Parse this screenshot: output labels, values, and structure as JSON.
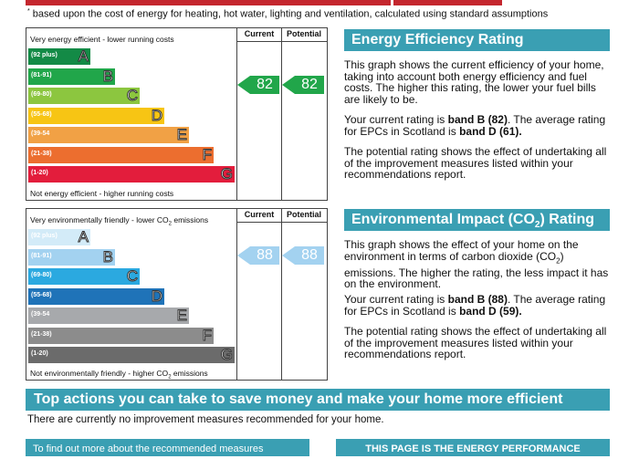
{
  "footnote": {
    "marker": "*",
    "text": "based upon the cost of energy for heating, hot water, lighting and ventilation, calculated using standard assumptions"
  },
  "headers": {
    "current": "Current",
    "potential": "Potential"
  },
  "energy": {
    "top_caption": "Very energy efficient - lower running costs",
    "bottom_caption": "Not energy efficient - higher running costs",
    "bands": [
      {
        "range": "(92 plus)",
        "letter": "A",
        "color": "#138a46"
      },
      {
        "range": "(81-91)",
        "letter": "B",
        "color": "#21a64a"
      },
      {
        "range": "(69-80)",
        "letter": "C",
        "color": "#8cc63f"
      },
      {
        "range": "(55-68)",
        "letter": "D",
        "color": "#f7c514"
      },
      {
        "range": "(39-54",
        "letter": "E",
        "color": "#f1a145"
      },
      {
        "range": "(21-38)",
        "letter": "F",
        "color": "#ec6e2f"
      },
      {
        "range": "(1-20)",
        "letter": "G",
        "color": "#e31d3c"
      }
    ],
    "current": "82",
    "potential": "82",
    "arrow_color": "#21a64a",
    "title": "Energy Efficiency Rating",
    "p1": "This graph shows the current efficiency of your home, taking into account both energy efficiency and fuel costs. The higher this rating, the lower your fuel bills are likely to be.",
    "p2_pre": "Your current rating is ",
    "p2_b1": "band B (82)",
    "p2_mid": ". The average rating for EPCs in Scotland is ",
    "p2_b2": "band D (61).",
    "p3": "The potential rating shows the effect of undertaking all of the improvement measures listed within your recommendations report."
  },
  "environment": {
    "top_caption_pre": "Very environmentally friendly - lower CO",
    "top_caption_sub": "2",
    "top_caption_post": " emissions",
    "bottom_caption_pre": "Not environmentally friendly - higher CO",
    "bottom_caption_sub": "2",
    "bottom_caption_post": " emissions",
    "bands": [
      {
        "range": "(92 plus)",
        "letter": "A",
        "color": "#d3ebf8"
      },
      {
        "range": "(81-91)",
        "letter": "B",
        "color": "#a3d2f0"
      },
      {
        "range": "(69-80)",
        "letter": "C",
        "color": "#2ba9e0"
      },
      {
        "range": "(55-68)",
        "letter": "D",
        "color": "#1f73b8"
      },
      {
        "range": "(39-54",
        "letter": "E",
        "color": "#a7a9ac"
      },
      {
        "range": "(21-38)",
        "letter": "F",
        "color": "#8c8c8c"
      },
      {
        "range": "(1-20)",
        "letter": "G",
        "color": "#6b6b6b"
      }
    ],
    "current": "88",
    "potential": "88",
    "arrow_color": "#a3d2f0",
    "title_pre": "Environmental Impact (CO",
    "title_sub": "2",
    "title_post": ") Rating",
    "p1_pre": "This graph shows the effect of your home on the environment in terms of carbon dioxide (CO",
    "p1_sub": "2",
    "p1_post": ") emissions. The higher the rating, the less impact it has on the environment.",
    "p2_pre": "Your current rating is ",
    "p2_b1": "band B (88)",
    "p2_mid": ". The average rating for EPCs in Scotland is ",
    "p2_b2": "band D (59).",
    "p3": "The potential rating shows the effect of undertaking all of the improvement measures listed within your recommendations report."
  },
  "actions": {
    "title": "Top actions you can take to save money and make your home more efficient",
    "text": "There are currently no improvement measures recommended for your home."
  },
  "footer": {
    "left": "To find out more about the recommended measures",
    "right": "THIS PAGE IS THE ENERGY PERFORMANCE"
  }
}
